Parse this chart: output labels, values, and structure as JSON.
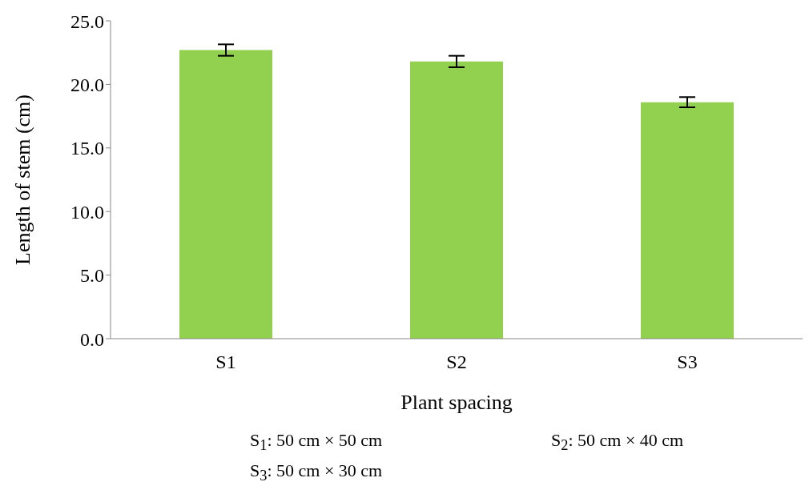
{
  "chart_data": {
    "type": "bar",
    "xlabel": "Plant spacing",
    "ylabel": "Length of stem (cm)",
    "categories": [
      "S1",
      "S2",
      "S3"
    ],
    "values": [
      22.7,
      21.8,
      18.6
    ],
    "errors": [
      0.45,
      0.45,
      0.4
    ],
    "color": "#92d050",
    "ylim": [
      0,
      25
    ],
    "yticks": [
      {
        "value": 0,
        "label": "0.0"
      },
      {
        "value": 5,
        "label": "5.0"
      },
      {
        "value": 10,
        "label": "10.0"
      },
      {
        "value": 15,
        "label": "15.0"
      },
      {
        "value": 20,
        "label": "20.0"
      },
      {
        "value": 25,
        "label": "25.0"
      }
    ],
    "grid": false,
    "legend": false,
    "annotations": [
      "S$_{1}$: 50 cm × 50 cm",
      "S$_{2}$: 50 cm × 40 cm",
      "S$_{3}$: 50 cm × 30 cm"
    ]
  }
}
